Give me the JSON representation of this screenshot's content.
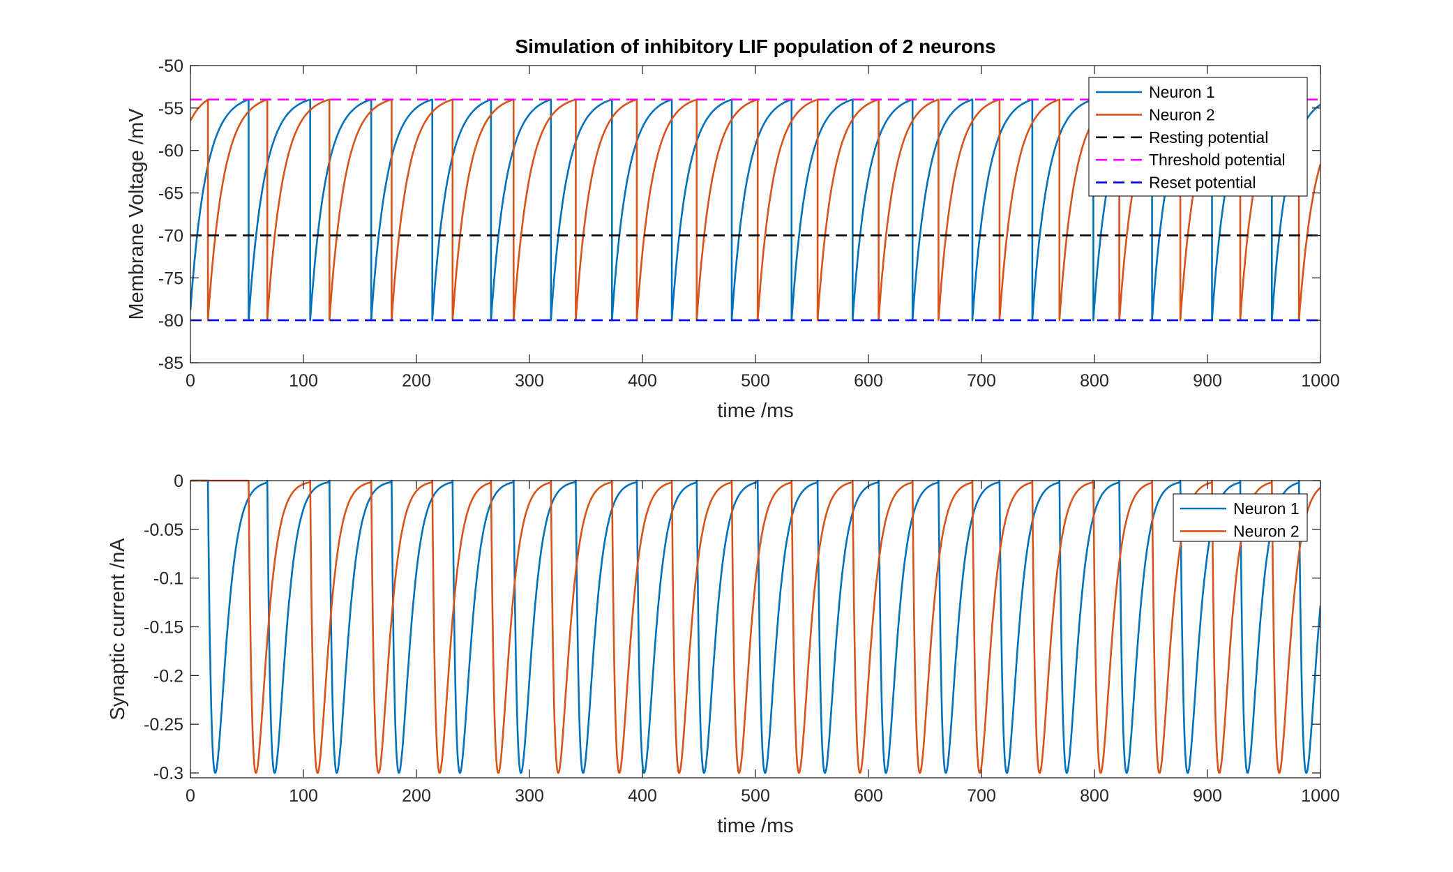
{
  "chart_data": [
    {
      "type": "line",
      "title": "Simulation of inhibitory LIF population of 2 neurons",
      "xlabel": "time /ms",
      "ylabel": "Membrane Voltage /mV",
      "xlim": [
        0,
        1000
      ],
      "ylim": [
        -85,
        -50
      ],
      "xticks": [
        0,
        100,
        200,
        300,
        400,
        500,
        600,
        700,
        800,
        900,
        1000
      ],
      "xtick_labels": [
        "0",
        "100",
        "200",
        "300",
        "400",
        "500",
        "600",
        "700",
        "800",
        "900",
        "1000"
      ],
      "yticks": [
        -85,
        -80,
        -75,
        -70,
        -65,
        -60,
        -55,
        -50
      ],
      "ytick_labels": [
        "-85",
        "-80",
        "-75",
        "-70",
        "-65",
        "-60",
        "-55",
        "-50"
      ],
      "grid": false,
      "legend_position": "top-right",
      "series": [
        {
          "name": "Neuron 1",
          "color": "#0072BD",
          "style": "solid",
          "initial_value": -78.8,
          "spike_times": [
            51.5,
            106,
            160,
            214,
            266,
            319,
            373,
            426,
            479,
            532,
            586,
            639,
            692,
            745,
            799,
            851,
            904,
            957
          ],
          "end_value": -54.6
        },
        {
          "name": "Neuron 2",
          "color": "#D95319",
          "style": "solid",
          "initial_value": -56.5,
          "spike_times": [
            15.5,
            68,
            123,
            178,
            232,
            286,
            341,
            395,
            448,
            502,
            555,
            609,
            662,
            716,
            769,
            822,
            876,
            929,
            981
          ],
          "end_value": -61.6
        },
        {
          "name": "Resting potential",
          "color": "#000000",
          "style": "dashed",
          "value": -70
        },
        {
          "name": "Threshold potential",
          "color": "#FF00FF",
          "style": "dashed",
          "value": -54
        },
        {
          "name": "Reset potential",
          "color": "#0000FF",
          "style": "dashed",
          "value": -80
        }
      ],
      "model": {
        "v_threshold": -54,
        "v_reset": -80
      }
    },
    {
      "type": "line",
      "title": "",
      "xlabel": "time /ms",
      "ylabel": "Synaptic current /nA",
      "xlim": [
        0,
        1000
      ],
      "ylim": [
        -0.305,
        0
      ],
      "xticks": [
        0,
        100,
        200,
        300,
        400,
        500,
        600,
        700,
        800,
        900,
        1000
      ],
      "xtick_labels": [
        "0",
        "100",
        "200",
        "300",
        "400",
        "500",
        "600",
        "700",
        "800",
        "900",
        "1000"
      ],
      "yticks": [
        -0.3,
        -0.25,
        -0.2,
        -0.15,
        -0.1,
        -0.05,
        0
      ],
      "ytick_labels": [
        "-0.3",
        "-0.25",
        "-0.2",
        "-0.15",
        "-0.1",
        "-0.05",
        "0"
      ],
      "grid": false,
      "legend_position": "top-right",
      "series": [
        {
          "name": "Neuron 1",
          "color": "#0072BD",
          "style": "solid",
          "onset_times": [
            15.5,
            68,
            123,
            178,
            232,
            286,
            341,
            395,
            448,
            502,
            555,
            609,
            662,
            716,
            769,
            822,
            876,
            929,
            981
          ]
        },
        {
          "name": "Neuron 2",
          "color": "#D95319",
          "style": "solid",
          "onset_times": [
            51.5,
            106,
            160,
            214,
            266,
            319,
            373,
            426,
            479,
            532,
            586,
            639,
            692,
            745,
            799,
            851,
            904,
            957
          ]
        }
      ],
      "model": {
        "peak_current": -0.3
      }
    }
  ]
}
